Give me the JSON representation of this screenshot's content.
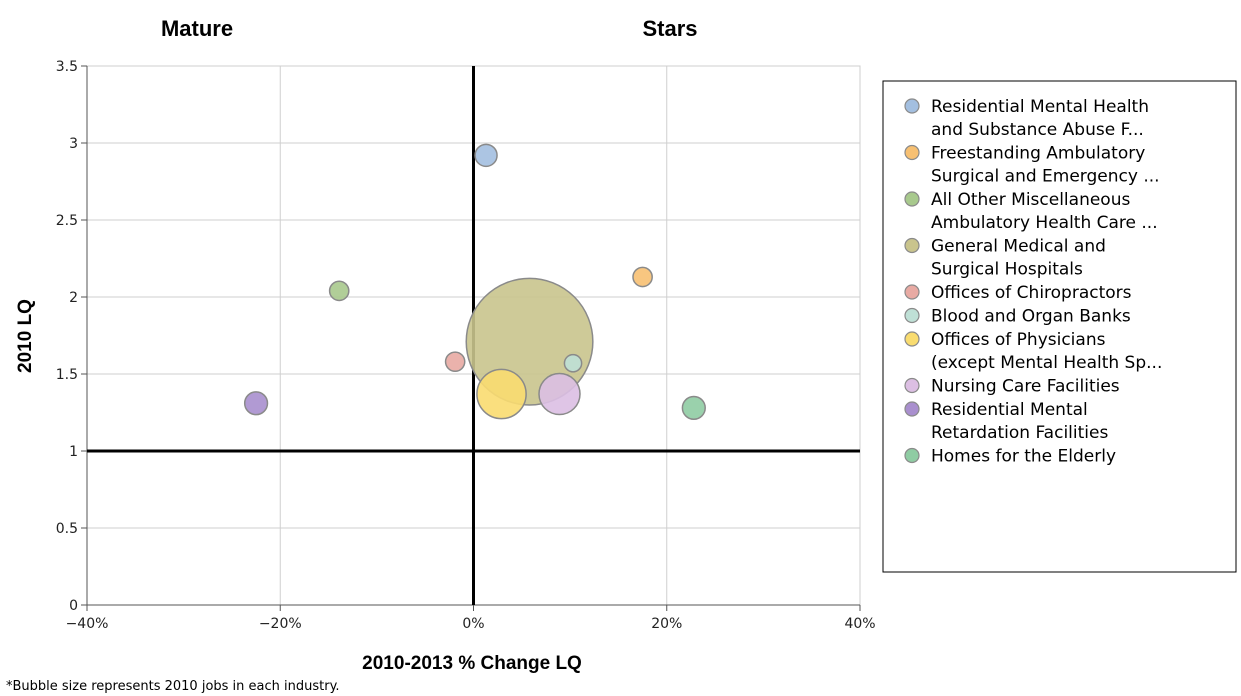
{
  "chart_data": {
    "type": "scatter",
    "title": "",
    "xlabel": "2010-2013 % Change LQ",
    "ylabel": "2010 LQ",
    "xlim": [
      -40,
      40
    ],
    "ylim": [
      0,
      3.5
    ],
    "x_ticks": [
      -40,
      -20,
      0,
      20,
      40
    ],
    "x_tick_labels": [
      "−40%",
      "−20%",
      "0%",
      "20%",
      "40%"
    ],
    "y_ticks": [
      0,
      0.5,
      1,
      1.5,
      2,
      2.5,
      3,
      3.5
    ],
    "y_tick_labels": [
      "0",
      "0.5",
      "1",
      "1.5",
      "2",
      "2.5",
      "3",
      "3.5"
    ],
    "grid": true,
    "reference_lines": {
      "x": 0,
      "y": 1
    },
    "quadrant_labels": {
      "top_left": "Mature",
      "top_right": "Stars"
    },
    "footnote": "*Bubble size represents 2010 jobs in each industry.",
    "legend_position": "right",
    "series": [
      {
        "name_lines": [
          "Residential Mental Health",
          "and Substance Abuse F..."
        ],
        "x": 1.3,
        "y": 2.92,
        "size": 1.3,
        "color": "#a3bfe0"
      },
      {
        "name_lines": [
          "Freestanding Ambulatory",
          "Surgical and Emergency ..."
        ],
        "x": 17.5,
        "y": 2.13,
        "size": 1.0,
        "color": "#f7c072"
      },
      {
        "name_lines": [
          "All Other Miscellaneous",
          "Ambulatory Health Care ..."
        ],
        "x": -13.9,
        "y": 2.04,
        "size": 1.0,
        "color": "#a8c98d"
      },
      {
        "name_lines": [
          "General Medical and",
          "Surgical Hospitals"
        ],
        "x": 5.8,
        "y": 1.71,
        "size": 43,
        "color": "#c9c48d"
      },
      {
        "name_lines": [
          "Offices of Chiropractors"
        ],
        "x": -1.9,
        "y": 1.58,
        "size": 1.0,
        "color": "#e8aaa3"
      },
      {
        "name_lines": [
          "Blood and Organ Banks"
        ],
        "x": 10.3,
        "y": 1.57,
        "size": 0.8,
        "color": "#bfe0d6"
      },
      {
        "name_lines": [
          "Offices of Physicians",
          "(except Mental Health Sp..."
        ],
        "x": 2.9,
        "y": 1.37,
        "size": 6.5,
        "color": "#f9dc70"
      },
      {
        "name_lines": [
          "Nursing Care Facilities"
        ],
        "x": 8.9,
        "y": 1.37,
        "size": 4.5,
        "color": "#dcbfe3"
      },
      {
        "name_lines": [
          "Residential Mental",
          "Retardation Facilities"
        ],
        "x": -22.5,
        "y": 1.31,
        "size": 1.4,
        "color": "#a98fce"
      },
      {
        "name_lines": [
          "Homes for the Elderly"
        ],
        "x": 22.8,
        "y": 1.28,
        "size": 1.4,
        "color": "#8fcca3"
      }
    ]
  }
}
